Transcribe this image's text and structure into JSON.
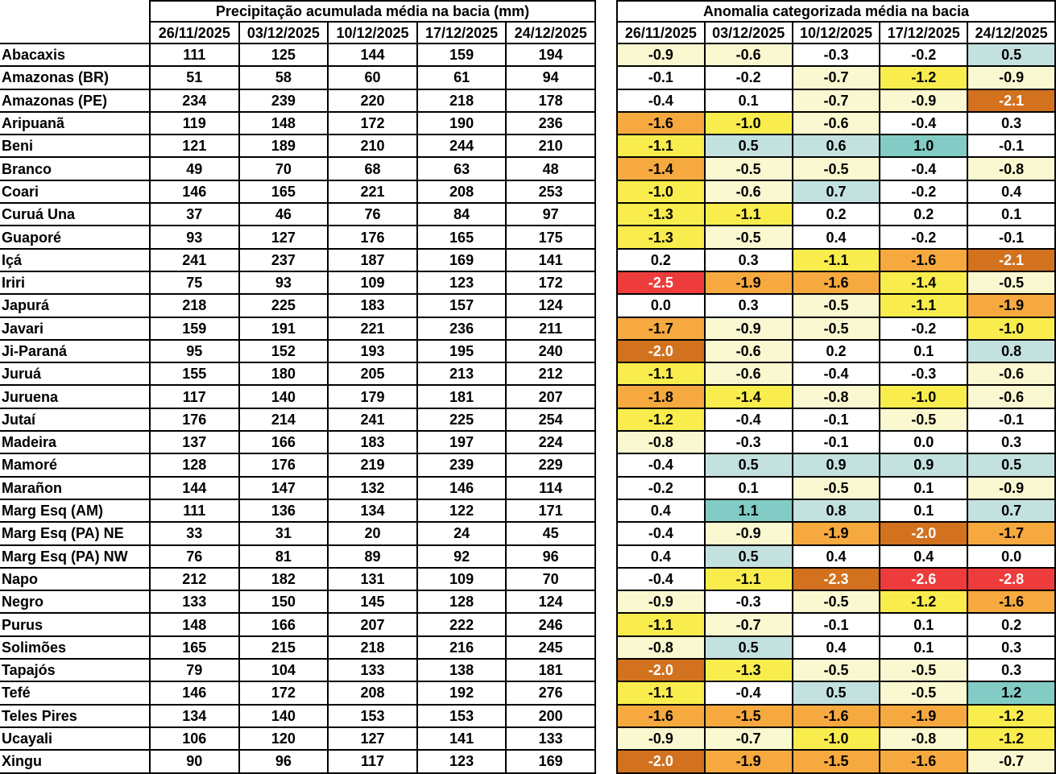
{
  "left_table": {
    "title": "Precipitação acumulada média na bacia (mm)",
    "dates": [
      "26/11/2025",
      "03/12/2025",
      "10/12/2025",
      "17/12/2025",
      "24/12/2025"
    ]
  },
  "right_table": {
    "title": "Anomalia categorizada média na bacia",
    "dates": [
      "26/11/2025",
      "03/12/2025",
      "10/12/2025",
      "17/12/2025",
      "24/12/2025"
    ]
  },
  "palette": {
    "w": "#FFFFFF",
    "c": "#FAF8D0",
    "y": "#F9ED4E",
    "o": "#F6A93F",
    "d": "#D2711E",
    "r": "#EE3C3C",
    "b": "#C3E1DE",
    "t": "#82CCC5"
  },
  "text_on_dark": "#FFFFFF",
  "chart_data": {
    "type": "table",
    "tables": [
      {
        "title": "Precipitação acumulada média na bacia (mm)",
        "columns": [
          "",
          "26/11/2025",
          "03/12/2025",
          "10/12/2025",
          "17/12/2025",
          "24/12/2025"
        ]
      },
      {
        "title": "Anomalia categorizada média na bacia",
        "columns": [
          "26/11/2025",
          "03/12/2025",
          "10/12/2025",
          "17/12/2025",
          "24/12/2025"
        ]
      }
    ],
    "basins": [
      "Abacaxis",
      "Amazonas (BR)",
      "Amazonas (PE)",
      "Aripuanã",
      "Beni",
      "Branco",
      "Coari",
      "Curuá Una",
      "Guaporé",
      "Içá",
      "Iriri",
      "Japurá",
      "Javari",
      "Ji-Paraná",
      "Juruá",
      "Juruena",
      "Jutaí",
      "Madeira",
      "Mamoré",
      "Marañon",
      "Marg Esq (AM)",
      "Marg Esq (PA) NE",
      "Marg Esq (PA) NW",
      "Napo",
      "Negro",
      "Purus",
      "Solimões",
      "Tapajós",
      "Tefé",
      "Teles Pires",
      "Ucayali",
      "Xingu"
    ],
    "precipitation_mm": [
      [
        111,
        125,
        144,
        159,
        194
      ],
      [
        51,
        58,
        60,
        61,
        94
      ],
      [
        234,
        239,
        220,
        218,
        178
      ],
      [
        119,
        148,
        172,
        190,
        236
      ],
      [
        121,
        189,
        210,
        244,
        210
      ],
      [
        49,
        70,
        68,
        63,
        48
      ],
      [
        146,
        165,
        221,
        208,
        253
      ],
      [
        37,
        46,
        76,
        84,
        97
      ],
      [
        93,
        127,
        176,
        165,
        175
      ],
      [
        241,
        237,
        187,
        169,
        141
      ],
      [
        75,
        93,
        109,
        123,
        172
      ],
      [
        218,
        225,
        183,
        157,
        124
      ],
      [
        159,
        191,
        221,
        236,
        211
      ],
      [
        95,
        152,
        193,
        195,
        240
      ],
      [
        155,
        180,
        205,
        213,
        212
      ],
      [
        117,
        140,
        179,
        181,
        207
      ],
      [
        176,
        214,
        241,
        225,
        254
      ],
      [
        137,
        166,
        183,
        197,
        224
      ],
      [
        128,
        176,
        219,
        239,
        229
      ],
      [
        144,
        147,
        132,
        146,
        114
      ],
      [
        111,
        136,
        134,
        122,
        171
      ],
      [
        33,
        31,
        20,
        24,
        45
      ],
      [
        76,
        81,
        89,
        92,
        96
      ],
      [
        212,
        182,
        131,
        109,
        70
      ],
      [
        133,
        150,
        145,
        128,
        124
      ],
      [
        148,
        166,
        207,
        222,
        246
      ],
      [
        165,
        215,
        218,
        216,
        245
      ],
      [
        79,
        104,
        133,
        138,
        181
      ],
      [
        146,
        172,
        208,
        192,
        276
      ],
      [
        134,
        140,
        153,
        153,
        200
      ],
      [
        106,
        120,
        127,
        141,
        133
      ],
      [
        90,
        96,
        117,
        123,
        169
      ]
    ],
    "anomaly": [
      [
        -0.9,
        -0.6,
        -0.3,
        -0.2,
        0.5
      ],
      [
        -0.1,
        -0.2,
        -0.7,
        -1.2,
        -0.9
      ],
      [
        -0.4,
        0.1,
        -0.7,
        -0.9,
        -2.1
      ],
      [
        -1.6,
        -1.0,
        -0.6,
        -0.4,
        0.3
      ],
      [
        -1.1,
        0.5,
        0.6,
        1.0,
        -0.1
      ],
      [
        -1.4,
        -0.5,
        -0.5,
        -0.4,
        -0.8
      ],
      [
        -1.0,
        -0.6,
        0.7,
        -0.2,
        0.4
      ],
      [
        -1.3,
        -1.1,
        0.2,
        0.2,
        0.1
      ],
      [
        -1.3,
        -0.5,
        0.4,
        -0.2,
        -0.1
      ],
      [
        0.2,
        0.3,
        -1.1,
        -1.6,
        -2.1
      ],
      [
        -2.5,
        -1.9,
        -1.6,
        -1.4,
        -0.5
      ],
      [
        0.0,
        0.3,
        -0.5,
        -1.1,
        -1.9
      ],
      [
        -1.7,
        -0.9,
        -0.5,
        -0.2,
        -1.0
      ],
      [
        -2.0,
        -0.6,
        0.2,
        0.1,
        0.8
      ],
      [
        -1.1,
        -0.6,
        -0.4,
        -0.3,
        -0.6
      ],
      [
        -1.8,
        -1.4,
        -0.8,
        -1.0,
        -0.6
      ],
      [
        -1.2,
        -0.4,
        -0.1,
        -0.5,
        -0.1
      ],
      [
        -0.8,
        -0.3,
        -0.1,
        0.0,
        0.3
      ],
      [
        -0.4,
        0.5,
        0.9,
        0.9,
        0.5
      ],
      [
        -0.2,
        0.1,
        -0.5,
        0.1,
        -0.9
      ],
      [
        0.4,
        1.1,
        0.8,
        0.1,
        0.7
      ],
      [
        -0.4,
        -0.9,
        -1.9,
        -2.0,
        -1.7
      ],
      [
        0.4,
        0.5,
        0.4,
        0.4,
        0.0
      ],
      [
        -0.4,
        -1.1,
        -2.3,
        -2.6,
        -2.8
      ],
      [
        -0.9,
        -0.3,
        -0.5,
        -1.2,
        -1.6
      ],
      [
        -1.1,
        -0.7,
        -0.1,
        0.1,
        0.2
      ],
      [
        -0.8,
        0.5,
        0.4,
        0.1,
        0.3
      ],
      [
        -2.0,
        -1.3,
        -0.5,
        -0.5,
        0.3
      ],
      [
        -1.1,
        -0.4,
        0.5,
        -0.5,
        1.2
      ],
      [
        -1.6,
        -1.5,
        -1.6,
        -1.9,
        -1.2
      ],
      [
        -0.9,
        -0.7,
        -1.0,
        -0.8,
        -1.2
      ],
      [
        -2.0,
        -1.9,
        -1.5,
        -1.6,
        -0.7
      ]
    ],
    "anomaly_colors": [
      [
        "c",
        "c",
        "w",
        "w",
        "b"
      ],
      [
        "w",
        "w",
        "c",
        "y",
        "c"
      ],
      [
        "w",
        "w",
        "c",
        "c",
        "d"
      ],
      [
        "o",
        "y",
        "c",
        "w",
        "w"
      ],
      [
        "y",
        "b",
        "b",
        "t",
        "w"
      ],
      [
        "o",
        "c",
        "c",
        "w",
        "c"
      ],
      [
        "y",
        "c",
        "b",
        "w",
        "w"
      ],
      [
        "y",
        "y",
        "w",
        "w",
        "w"
      ],
      [
        "y",
        "c",
        "w",
        "w",
        "w"
      ],
      [
        "w",
        "w",
        "y",
        "o",
        "d"
      ],
      [
        "r",
        "o",
        "o",
        "y",
        "c"
      ],
      [
        "w",
        "w",
        "c",
        "y",
        "o"
      ],
      [
        "o",
        "c",
        "c",
        "w",
        "y"
      ],
      [
        "d",
        "c",
        "w",
        "w",
        "b"
      ],
      [
        "y",
        "c",
        "w",
        "w",
        "c"
      ],
      [
        "o",
        "y",
        "c",
        "y",
        "c"
      ],
      [
        "y",
        "w",
        "w",
        "c",
        "w"
      ],
      [
        "c",
        "w",
        "w",
        "w",
        "w"
      ],
      [
        "w",
        "b",
        "b",
        "b",
        "b"
      ],
      [
        "w",
        "w",
        "c",
        "w",
        "c"
      ],
      [
        "w",
        "t",
        "b",
        "w",
        "b"
      ],
      [
        "w",
        "c",
        "o",
        "d",
        "o"
      ],
      [
        "w",
        "b",
        "w",
        "w",
        "w"
      ],
      [
        "w",
        "y",
        "d",
        "r",
        "r"
      ],
      [
        "c",
        "w",
        "c",
        "y",
        "o"
      ],
      [
        "y",
        "c",
        "w",
        "w",
        "w"
      ],
      [
        "c",
        "b",
        "w",
        "w",
        "w"
      ],
      [
        "d",
        "y",
        "c",
        "c",
        "w"
      ],
      [
        "y",
        "w",
        "b",
        "c",
        "t"
      ],
      [
        "o",
        "o",
        "o",
        "o",
        "y"
      ],
      [
        "c",
        "c",
        "y",
        "c",
        "y"
      ],
      [
        "d",
        "o",
        "o",
        "o",
        "c"
      ]
    ]
  }
}
